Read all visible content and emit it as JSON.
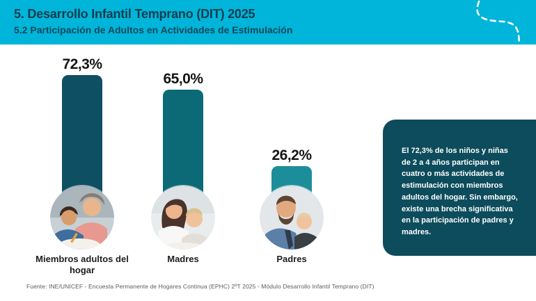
{
  "header": {
    "title": "5. Desarrollo Infantil Temprano (DIT) 2025",
    "subtitle": "5.2 Participación de Adultos en Actividades de Estimulación",
    "background": "#00b5d9",
    "text_color": "#0a3d50",
    "decoration": "white-dashed-curve"
  },
  "chart_data": {
    "type": "bar",
    "title": "Participación de Adultos en Actividades de Estimulación",
    "categories": [
      "Miembros adultos del hogar",
      "Madres",
      "Padres"
    ],
    "values": [
      72.3,
      65.0,
      26.2
    ],
    "value_labels": [
      "72,3%",
      "65,0%",
      "26,2%"
    ],
    "unit": "%",
    "ylim": [
      0,
      100
    ],
    "grid": false,
    "legend": "none",
    "bar_colors": [
      "#0f4f63",
      "#0c6a77",
      "#1b8e9a"
    ],
    "category_photos": [
      "grandmother-helping-boy-photo",
      "mother-with-toddler-photo",
      "father-kissing-baby-photo"
    ]
  },
  "info_box": {
    "text": "El 72,3% de los niños y niñas de 2 a 4 años participan en cuatro o más actividades de estimulación con miembros adultos del hogar. Sin embargo, existe una brecha significativa en la participación de padres y madres.",
    "background": "#0d4c5c",
    "text_color": "#ffffff"
  },
  "footer": {
    "source": "Fuente: INE/UNICEF - Encuesta Permanente de Hogares Continua (EPHC) 2ºT 2025 - Módulo Desarrollo Infantil Temprano (DIT)"
  }
}
